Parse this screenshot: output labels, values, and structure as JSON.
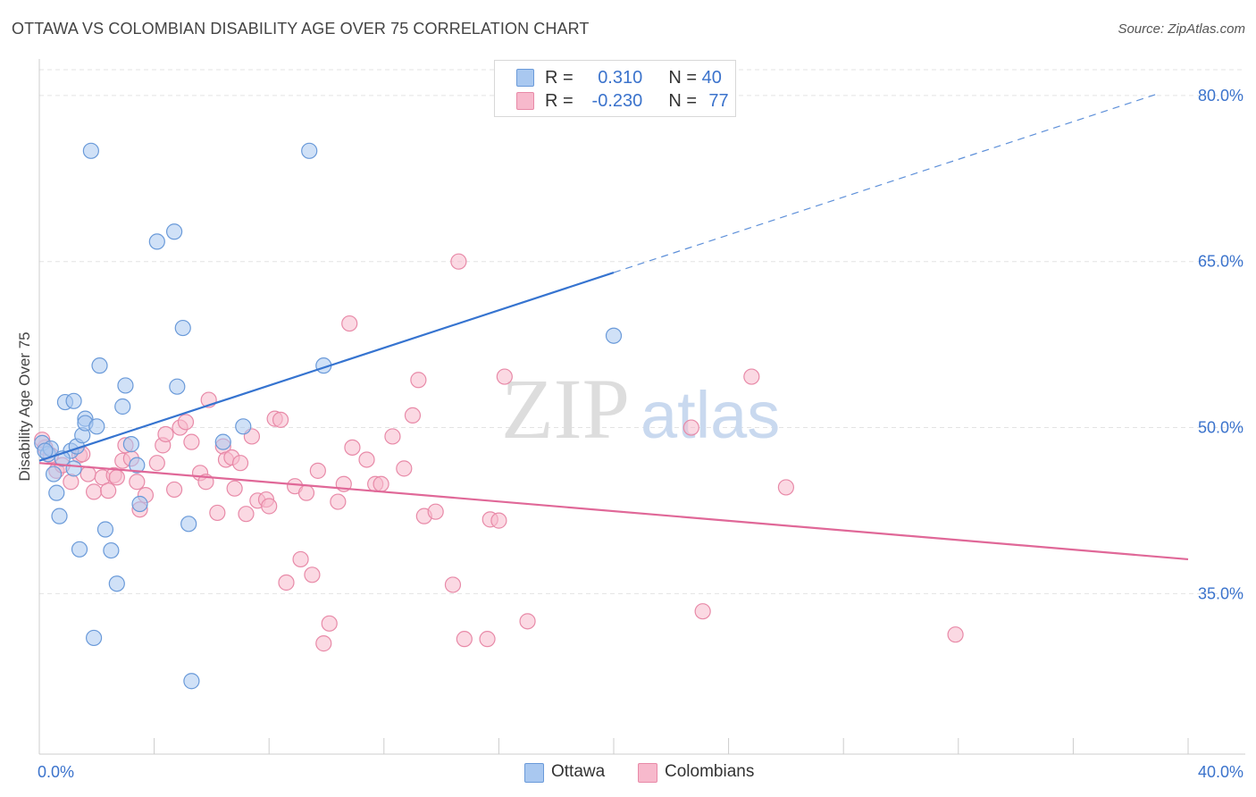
{
  "header": {
    "title": "OTTAWA VS COLOMBIAN DISABILITY AGE OVER 75 CORRELATION CHART",
    "source": "Source: ZipAtlas.com"
  },
  "legend": {
    "rows": [
      {
        "r_label": "R =",
        "r_value": "0.310",
        "n_label": "N =",
        "n_value": "40",
        "color": "#a9c8f0"
      },
      {
        "r_label": "R =",
        "r_value": "-0.230",
        "n_label": "N =",
        "n_value": "77",
        "color": "#f7b9cc"
      }
    ]
  },
  "bottom_legend": {
    "items": [
      {
        "label": "Ottawa",
        "color": "#a9c8f0"
      },
      {
        "label": "Colombians",
        "color": "#f7b9cc"
      }
    ]
  },
  "watermark": {
    "zip": "ZIP",
    "atlas": "atlas"
  },
  "colors": {
    "ottawa_fill": "#a9c8f0",
    "ottawa_stroke": "#6a9ad9",
    "ottawa_line": "#3674d0",
    "colombian_fill": "#f7b9cc",
    "colombian_stroke": "#e88aa8",
    "colombian_line": "#e06898",
    "tick_label": "#3b73cc",
    "grid": "#e3e3e3"
  },
  "chart_data": {
    "type": "scatter",
    "title": "OTTAWA VS COLOMBIAN DISABILITY AGE OVER 75 CORRELATION CHART",
    "xlabel": "",
    "ylabel": "Disability Age Over 75",
    "xlim": [
      0,
      40
    ],
    "ylim": [
      20.5,
      83.3
    ],
    "x_tick_labels": [
      {
        "value": 0,
        "label": "0.0%"
      },
      {
        "value": 40,
        "label": "40.0%"
      }
    ],
    "y_tick_labels": [
      {
        "value": 80,
        "label": "80.0%"
      },
      {
        "value": 65,
        "label": "65.0%"
      },
      {
        "value": 50,
        "label": "50.0%"
      },
      {
        "value": 35,
        "label": "35.0%"
      }
    ],
    "grid": true,
    "legend_position": "top-center",
    "series": [
      {
        "name": "Ottawa",
        "points": [
          [
            0.1,
            48.6
          ],
          [
            0.3,
            47.6
          ],
          [
            0.4,
            48.1
          ],
          [
            0.5,
            45.8
          ],
          [
            0.6,
            44.1
          ],
          [
            0.7,
            42.0
          ],
          [
            0.9,
            52.3
          ],
          [
            1.1,
            47.9
          ],
          [
            1.2,
            46.3
          ],
          [
            1.2,
            52.4
          ],
          [
            1.3,
            48.3
          ],
          [
            1.4,
            39.0
          ],
          [
            1.5,
            49.3
          ],
          [
            1.6,
            50.8
          ],
          [
            1.6,
            50.4
          ],
          [
            1.8,
            75.0
          ],
          [
            1.9,
            31.0
          ],
          [
            2.0,
            50.1
          ],
          [
            2.1,
            55.6
          ],
          [
            2.3,
            40.8
          ],
          [
            2.5,
            38.9
          ],
          [
            2.7,
            35.9
          ],
          [
            2.9,
            51.9
          ],
          [
            3.0,
            53.8
          ],
          [
            3.2,
            48.5
          ],
          [
            3.4,
            46.6
          ],
          [
            3.5,
            43.1
          ],
          [
            4.1,
            66.8
          ],
          [
            4.7,
            67.7
          ],
          [
            4.8,
            53.7
          ],
          [
            5.0,
            59.0
          ],
          [
            5.2,
            41.3
          ],
          [
            5.3,
            27.1
          ],
          [
            6.4,
            48.7
          ],
          [
            7.1,
            50.1
          ],
          [
            9.4,
            75.0
          ],
          [
            9.9,
            55.6
          ],
          [
            20.0,
            58.3
          ],
          [
            0.2,
            47.9
          ],
          [
            0.8,
            47.2
          ]
        ],
        "trend": {
          "from": [
            0,
            47.0
          ],
          "to": [
            20.0,
            64.0
          ],
          "dashed_to": [
            39.0,
            80.2
          ]
        }
      },
      {
        "name": "Colombians",
        "points": [
          [
            0.2,
            48.2
          ],
          [
            0.4,
            47.5
          ],
          [
            0.6,
            46.1
          ],
          [
            0.8,
            46.6
          ],
          [
            1.1,
            45.1
          ],
          [
            1.4,
            47.5
          ],
          [
            1.5,
            47.6
          ],
          [
            1.7,
            45.8
          ],
          [
            1.9,
            44.2
          ],
          [
            2.2,
            45.5
          ],
          [
            2.4,
            44.3
          ],
          [
            2.6,
            45.7
          ],
          [
            2.7,
            45.5
          ],
          [
            2.9,
            47.0
          ],
          [
            3.2,
            47.2
          ],
          [
            3.4,
            45.1
          ],
          [
            3.5,
            42.6
          ],
          [
            3.7,
            43.9
          ],
          [
            4.1,
            46.8
          ],
          [
            4.3,
            48.4
          ],
          [
            4.4,
            49.4
          ],
          [
            4.7,
            44.4
          ],
          [
            4.9,
            50.0
          ],
          [
            5.1,
            50.5
          ],
          [
            5.3,
            48.7
          ],
          [
            5.6,
            45.9
          ],
          [
            5.8,
            45.1
          ],
          [
            5.9,
            52.5
          ],
          [
            6.2,
            42.3
          ],
          [
            6.4,
            48.3
          ],
          [
            6.5,
            47.1
          ],
          [
            6.7,
            47.3
          ],
          [
            6.8,
            44.5
          ],
          [
            7.0,
            46.8
          ],
          [
            7.2,
            42.2
          ],
          [
            7.4,
            49.2
          ],
          [
            7.6,
            43.4
          ],
          [
            7.9,
            43.5
          ],
          [
            8.0,
            42.9
          ],
          [
            8.2,
            50.8
          ],
          [
            8.4,
            50.7
          ],
          [
            8.6,
            36.0
          ],
          [
            8.9,
            44.7
          ],
          [
            9.1,
            38.1
          ],
          [
            9.3,
            44.1
          ],
          [
            9.5,
            36.7
          ],
          [
            9.7,
            46.1
          ],
          [
            9.9,
            30.5
          ],
          [
            10.1,
            32.3
          ],
          [
            10.4,
            43.3
          ],
          [
            10.6,
            44.9
          ],
          [
            10.8,
            59.4
          ],
          [
            10.9,
            48.2
          ],
          [
            11.4,
            47.1
          ],
          [
            11.7,
            44.9
          ],
          [
            11.9,
            44.9
          ],
          [
            12.3,
            49.2
          ],
          [
            12.7,
            46.3
          ],
          [
            13.0,
            51.1
          ],
          [
            13.2,
            54.3
          ],
          [
            13.4,
            42.0
          ],
          [
            13.8,
            42.4
          ],
          [
            14.4,
            35.8
          ],
          [
            14.6,
            65.0
          ],
          [
            14.8,
            30.9
          ],
          [
            15.6,
            30.9
          ],
          [
            15.7,
            41.7
          ],
          [
            16.0,
            41.6
          ],
          [
            16.2,
            54.6
          ],
          [
            17.0,
            32.5
          ],
          [
            22.7,
            50.0
          ],
          [
            23.1,
            33.4
          ],
          [
            24.8,
            54.6
          ],
          [
            26.0,
            44.6
          ],
          [
            31.9,
            31.3
          ],
          [
            0.1,
            48.9
          ],
          [
            3.0,
            48.4
          ]
        ],
        "trend": {
          "from": [
            0,
            46.8
          ],
          "to": [
            40.0,
            38.1
          ]
        }
      }
    ]
  }
}
